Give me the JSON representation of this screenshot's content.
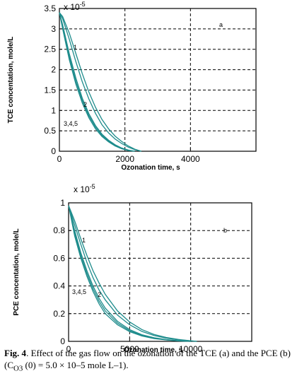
{
  "chart_data": [
    {
      "type": "line",
      "panel_label": "a",
      "exponent_label": "x 10",
      "exponent_power": "-5",
      "xlabel": "Ozonation time, s",
      "ylabel": "TCE concentation, mole/L",
      "xlim": [
        0,
        6000
      ],
      "ylim": [
        0,
        3.5
      ],
      "xticks": [
        0,
        2000,
        4000
      ],
      "yticks": [
        0,
        0.5,
        1,
        1.5,
        2,
        2.5,
        3,
        3.5
      ],
      "grid": true,
      "series": [
        {
          "name": "1",
          "x": [
            0,
            100,
            300,
            500,
            700,
            900,
            1100,
            1300,
            1500,
            1700,
            1900,
            2100,
            2300,
            2500
          ],
          "y": [
            3.4,
            3.3,
            2.9,
            2.4,
            1.9,
            1.45,
            1.08,
            0.78,
            0.55,
            0.37,
            0.24,
            0.13,
            0.05,
            0.0
          ]
        },
        {
          "name": "2",
          "x": [
            0,
            100,
            300,
            500,
            700,
            900,
            1100,
            1300,
            1500,
            1700,
            1900,
            2100,
            2300,
            2500
          ],
          "y": [
            3.4,
            3.25,
            2.75,
            2.2,
            1.7,
            1.28,
            0.93,
            0.65,
            0.45,
            0.3,
            0.19,
            0.1,
            0.04,
            0.0
          ]
        },
        {
          "name": "3,4,5",
          "x": [
            0,
            100,
            300,
            500,
            700,
            900,
            1100,
            1300,
            1500,
            1700,
            1900,
            2100,
            2300
          ],
          "y": [
            3.4,
            3.1,
            2.4,
            1.8,
            1.3,
            0.92,
            0.63,
            0.42,
            0.27,
            0.16,
            0.08,
            0.03,
            0.0
          ]
        },
        {
          "name": "",
          "x": [
            0,
            100,
            300,
            500,
            700,
            900,
            1100,
            1300,
            1500,
            1700,
            1900,
            2100,
            2300
          ],
          "y": [
            3.4,
            3.05,
            2.32,
            1.72,
            1.24,
            0.87,
            0.59,
            0.39,
            0.25,
            0.15,
            0.07,
            0.02,
            0.0
          ]
        },
        {
          "name": "",
          "x": [
            0,
            100,
            300,
            500,
            700,
            900,
            1100,
            1300,
            1500,
            1700,
            1900,
            2100,
            2300
          ],
          "y": [
            3.4,
            3.0,
            2.25,
            1.65,
            1.18,
            0.82,
            0.55,
            0.36,
            0.23,
            0.13,
            0.06,
            0.02,
            0.0
          ]
        }
      ]
    },
    {
      "type": "line",
      "panel_label": "b",
      "exponent_label": "x 10",
      "exponent_power": "-5",
      "xlabel": "Ozonation time, s",
      "ylabel": "PCE concentation, mole/L",
      "xlim": [
        0,
        15000
      ],
      "ylim": [
        0,
        1.0
      ],
      "xticks": [
        0,
        5000,
        10000
      ],
      "yticks": [
        0,
        0.2,
        0.4,
        0.6,
        0.8,
        1
      ],
      "grid": true,
      "series": [
        {
          "name": "1",
          "x": [
            0,
            500,
            1000,
            1500,
            2000,
            2500,
            3000,
            4000,
            5000,
            6000,
            7000,
            8000,
            9000,
            10000,
            10500
          ],
          "y": [
            0.98,
            0.87,
            0.74,
            0.62,
            0.51,
            0.42,
            0.34,
            0.22,
            0.14,
            0.085,
            0.05,
            0.028,
            0.014,
            0.004,
            0.0
          ]
        },
        {
          "name": "2",
          "x": [
            0,
            500,
            1000,
            1500,
            2000,
            2500,
            3000,
            4000,
            5000,
            6000,
            7000,
            8000,
            9000,
            10000,
            10500
          ],
          "y": [
            0.98,
            0.84,
            0.7,
            0.57,
            0.46,
            0.37,
            0.3,
            0.19,
            0.12,
            0.072,
            0.042,
            0.023,
            0.011,
            0.003,
            0.0
          ]
        },
        {
          "name": "3,4,5",
          "x": [
            0,
            500,
            1000,
            1500,
            2000,
            2500,
            3000,
            4000,
            5000,
            6000,
            7000,
            8000,
            9000,
            10000
          ],
          "y": [
            0.98,
            0.8,
            0.64,
            0.51,
            0.4,
            0.31,
            0.24,
            0.145,
            0.085,
            0.048,
            0.026,
            0.013,
            0.005,
            0.0
          ]
        },
        {
          "name": "",
          "x": [
            0,
            500,
            1000,
            1500,
            2000,
            2500,
            3000,
            4000,
            5000,
            6000,
            7000,
            8000,
            9000,
            10000
          ],
          "y": [
            0.98,
            0.78,
            0.62,
            0.49,
            0.38,
            0.29,
            0.22,
            0.132,
            0.077,
            0.043,
            0.023,
            0.011,
            0.004,
            0.0
          ]
        },
        {
          "name": "",
          "x": [
            0,
            500,
            1000,
            1500,
            2000,
            2500,
            3000,
            4000,
            5000,
            6000,
            7000,
            8000,
            9000,
            10000
          ],
          "y": [
            0.98,
            0.76,
            0.6,
            0.47,
            0.36,
            0.27,
            0.2,
            0.12,
            0.07,
            0.039,
            0.02,
            0.01,
            0.003,
            0.0
          ]
        }
      ]
    }
  ],
  "caption": {
    "fig_label": "Fig. 4",
    "text": ". Effect of the gas flow on the ozonation of the TCE (a) and the PCE (b) (C",
    "sub": "O3",
    "text_end": " (0) = 5.0 × 10–5 mole L–1)."
  }
}
